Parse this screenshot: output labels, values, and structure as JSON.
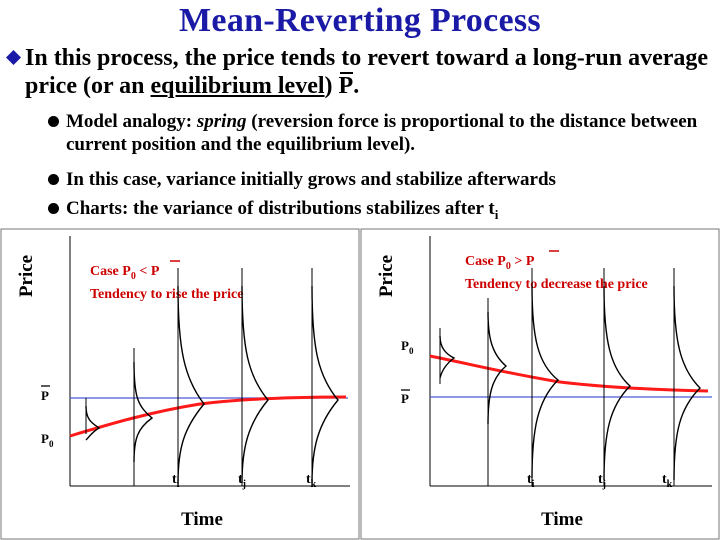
{
  "title": "Mean-Reverting Process",
  "bullet_main": {
    "text_before_underline": "In this process, the price tends to revert toward a long-run average price  (or an ",
    "underlined": "equilibrium level",
    "text_after_underline": ") ",
    "pbar": "P",
    "text_end": "."
  },
  "sub_bullets": [
    {
      "before": "Model analogy: ",
      "italic": "spring",
      "after": " (reversion force is proportional to the distance between current position and the equilibrium level)."
    },
    {
      "text": "In this case, variance initially grows and stabilize afterwards"
    },
    {
      "text": "Charts: the variance of distributions stabilizes after t",
      "subscript": "i"
    }
  ],
  "panels": [
    {
      "ylabel": "Price",
      "xlabel": "Time",
      "case_line": "Case P",
      "case_sub": "0",
      "case_rel": "<",
      "case_pbar": "P",
      "tendency": "Tendency to rise the price",
      "pbar_label": "P",
      "p0_label": "P",
      "p0_sub": "0",
      "ticks": [
        {
          "t": "t",
          "s": "i"
        },
        {
          "t": "t",
          "s": "j"
        },
        {
          "t": "t",
          "s": "k"
        }
      ]
    },
    {
      "ylabel": "Price",
      "xlabel": "Time",
      "case_line": "Case  P",
      "case_sub": "0",
      "case_rel": ">",
      "case_pbar": "P",
      "tendency": "Tendency to decrease the price",
      "pbar_label": "P",
      "p0_label": "P",
      "p0_sub": "0",
      "ticks": [
        {
          "t": "t",
          "s": "i"
        },
        {
          "t": "t",
          "s": "j"
        },
        {
          "t": "t",
          "s": "k"
        }
      ]
    }
  ],
  "colors": {
    "title": "#1a1aa6",
    "case_text": "#cc0000",
    "mean_line": "#4a5bd6",
    "path": "#ff1a1a"
  }
}
